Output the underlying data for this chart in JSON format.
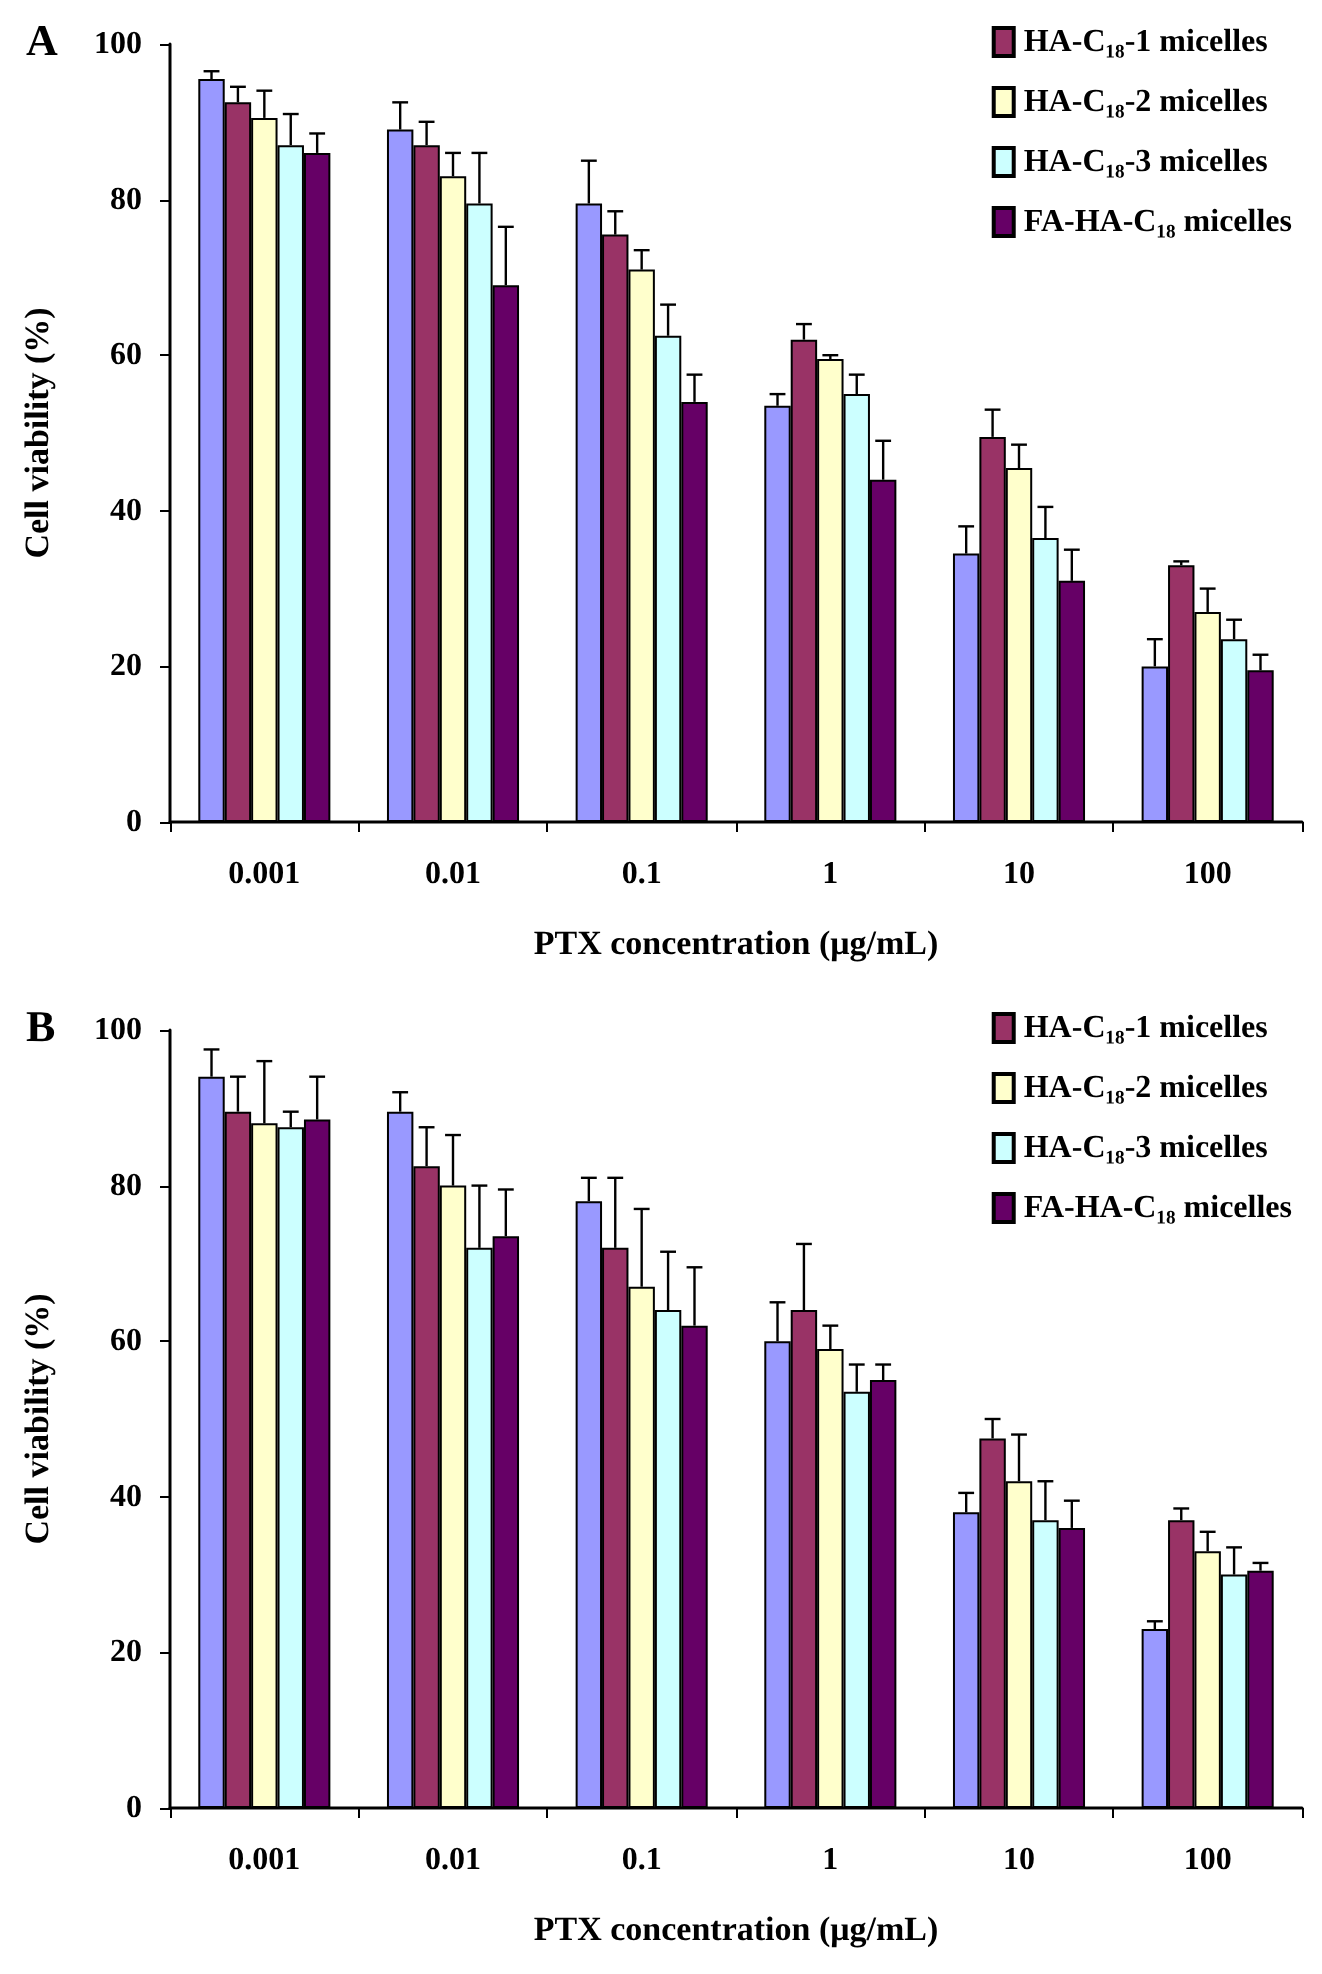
{
  "chart_data": [
    {
      "type": "bar",
      "title": "A",
      "xlabel": "PTX concentration (μg/mL)",
      "ylabel": "Cell viability (%)",
      "categories": [
        "0.001",
        "0.01",
        "0.1",
        "1",
        "10",
        "100"
      ],
      "ylim": [
        0,
        100
      ],
      "yticks": [
        0,
        20,
        40,
        60,
        80,
        100
      ],
      "grid": false,
      "legend": "top right",
      "series": [
        {
          "color": "#9999ff",
          "values": [
            95.5,
            89,
            79.5,
            53.5,
            34.5,
            20
          ],
          "errors": [
            [
              95.5,
              96.5
            ],
            [
              89,
              92.5
            ],
            [
              79.5,
              85
            ],
            [
              53.5,
              55
            ],
            [
              34.5,
              38
            ],
            [
              20,
              23.5
            ]
          ]
        },
        {
          "name": "HA-C₁₈-1 micelles",
          "color": "#993366",
          "values": [
            92.5,
            87,
            75.5,
            62,
            49.5,
            33
          ],
          "errors": [
            [
              92.5,
              94.5
            ],
            [
              87,
              90
            ],
            [
              75.5,
              78.5
            ],
            [
              62,
              64
            ],
            [
              49.5,
              53
            ],
            [
              33,
              33.5
            ]
          ]
        },
        {
          "name": "HA-C₁₈-2 micelles",
          "color": "#ffffcc",
          "values": [
            90.5,
            83,
            71,
            59.5,
            45.5,
            27
          ],
          "errors": [
            [
              90.5,
              94
            ],
            [
              83,
              86
            ],
            [
              71,
              73.5
            ],
            [
              59.5,
              60
            ],
            [
              45.5,
              48.5
            ],
            [
              27,
              30
            ]
          ]
        },
        {
          "name": "HA-C₁₈-3 micelles",
          "color": "#ccffff",
          "values": [
            87,
            79.5,
            62.5,
            55,
            36.5,
            23.5
          ],
          "errors": [
            [
              87,
              91
            ],
            [
              79.5,
              86
            ],
            [
              62.5,
              66.5
            ],
            [
              55,
              57.5
            ],
            [
              36.5,
              40.5
            ],
            [
              23.5,
              26
            ]
          ]
        },
        {
          "name": "FA-HA-C₁₈ micelles",
          "color": "#660066",
          "values": [
            86,
            69,
            54,
            44,
            31,
            19.5
          ],
          "errors": [
            [
              86,
              88.5
            ],
            [
              69,
              76.5
            ],
            [
              54,
              57.5
            ],
            [
              44,
              49
            ],
            [
              31,
              35
            ],
            [
              19.5,
              21.5
            ]
          ]
        }
      ]
    },
    {
      "type": "bar",
      "title": "B",
      "xlabel": "PTX concentration (μg/mL)",
      "ylabel": "Cell viability (%)",
      "categories": [
        "0.001",
        "0.01",
        "0.1",
        "1",
        "10",
        "100"
      ],
      "ylim": [
        0,
        100
      ],
      "yticks": [
        0,
        20,
        40,
        60,
        80,
        100
      ],
      "grid": false,
      "legend": "top right",
      "series": [
        {
          "color": "#9999ff",
          "values": [
            94,
            89.5,
            78,
            60,
            38,
            23
          ],
          "errors": [
            [
              94,
              97.5
            ],
            [
              89.5,
              92
            ],
            [
              78,
              81
            ],
            [
              60,
              65
            ],
            [
              38,
              40.5
            ],
            [
              23,
              24
            ]
          ]
        },
        {
          "name": "HA-C₁₈-1 micelles",
          "color": "#993366",
          "values": [
            89.5,
            82.5,
            72,
            64,
            47.5,
            37
          ],
          "errors": [
            [
              89.5,
              94
            ],
            [
              82.5,
              87.5
            ],
            [
              72,
              81
            ],
            [
              64,
              72.5
            ],
            [
              47.5,
              50
            ],
            [
              37,
              38.5
            ]
          ]
        },
        {
          "name": "HA-C₁₈-2 micelles",
          "color": "#ffffcc",
          "values": [
            88,
            80,
            67,
            59,
            42,
            33
          ],
          "errors": [
            [
              88,
              96
            ],
            [
              80,
              86.5
            ],
            [
              67,
              77
            ],
            [
              59,
              62
            ],
            [
              42,
              48
            ],
            [
              33,
              35.5
            ]
          ]
        },
        {
          "name": "HA-C₁₈-3 micelles",
          "color": "#ccffff",
          "values": [
            87.5,
            72,
            64,
            53.5,
            37,
            30
          ],
          "errors": [
            [
              87.5,
              89.5
            ],
            [
              72,
              80
            ],
            [
              64,
              71.5
            ],
            [
              53.5,
              57
            ],
            [
              37,
              42
            ],
            [
              30,
              33.5
            ]
          ]
        },
        {
          "name": "FA-HA-C₁₈ micelles",
          "color": "#660066",
          "values": [
            88.5,
            73.5,
            62,
            55,
            36,
            30.5
          ],
          "errors": [
            [
              88.5,
              94
            ],
            [
              73.5,
              79.5
            ],
            [
              62,
              69.5
            ],
            [
              55,
              57
            ],
            [
              36,
              39.5
            ],
            [
              30.5,
              31.5
            ]
          ]
        }
      ]
    }
  ]
}
